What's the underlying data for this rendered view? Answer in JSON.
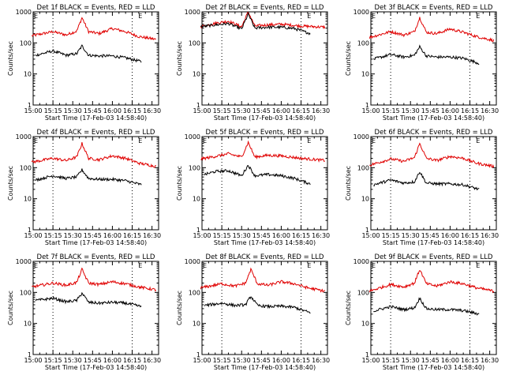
{
  "chart_data": [
    {
      "type": "line",
      "title": "Det 1f BLACK = Events, RED = LLD",
      "ylabel": "Counts/sec",
      "xlabel": "Start Time (17-Feb-03 14:58:40)",
      "x_ticks": [
        "15:00",
        "15:15",
        "15:30",
        "15:45",
        "16:00",
        "16:15",
        "16:30"
      ],
      "y_ticks": [
        "1",
        "10",
        "100",
        "1000"
      ],
      "ylim": [
        1,
        1000
      ],
      "y_scale": "log",
      "markers": [
        "E",
        "E"
      ],
      "series": [
        {
          "color": "#e00000",
          "x": [
            "14:59",
            "15:15",
            "15:25",
            "15:33",
            "15:37",
            "15:42",
            "15:50",
            "16:00",
            "16:10",
            "16:20",
            "16:33"
          ],
          "values": [
            170,
            230,
            180,
            240,
            650,
            230,
            200,
            290,
            230,
            160,
            130
          ]
        },
        {
          "color": "#000000",
          "x": [
            "15:02",
            "15:15",
            "15:25",
            "15:33",
            "15:37",
            "15:42",
            "15:50",
            "16:00",
            "16:10",
            "16:22"
          ],
          "values": [
            40,
            55,
            40,
            45,
            80,
            40,
            38,
            38,
            33,
            25
          ]
        }
      ]
    },
    {
      "type": "line",
      "title": "Det 2f BLACK = Events, RED = LLD",
      "ylabel": "Counts/sec",
      "xlabel": "Start Time (17-Feb-03 14:58:40)",
      "x_ticks": [
        "15:00",
        "15:15",
        "15:30",
        "15:45",
        "16:00",
        "16:15",
        "16:30"
      ],
      "y_ticks": [
        "1",
        "10",
        "100",
        "1000"
      ],
      "ylim": [
        1,
        1000
      ],
      "y_scale": "log",
      "markers": [
        "E",
        "E"
      ],
      "series": [
        {
          "color": "#e00000",
          "x": [
            "14:59",
            "15:10",
            "15:20",
            "15:30",
            "15:35",
            "15:40",
            "15:50",
            "16:00",
            "16:15",
            "16:33"
          ],
          "values": [
            330,
            430,
            500,
            330,
            1000,
            350,
            380,
            400,
            350,
            320
          ]
        },
        {
          "color": "#000000",
          "x": [
            "14:59",
            "15:10",
            "15:20",
            "15:30",
            "15:35",
            "15:40",
            "15:50",
            "16:00",
            "16:10",
            "16:22"
          ],
          "values": [
            330,
            380,
            420,
            280,
            850,
            300,
            320,
            320,
            290,
            200
          ]
        }
      ]
    },
    {
      "type": "line",
      "title": "Det 3f BLACK = Events, RED = LLD",
      "ylabel": "Counts/sec",
      "xlabel": "Start Time (17-Feb-03 14:58:40)",
      "x_ticks": [
        "15:00",
        "15:15",
        "15:30",
        "15:45",
        "16:00",
        "16:15",
        "16:30"
      ],
      "y_ticks": [
        "1",
        "10",
        "100",
        "1000"
      ],
      "ylim": [
        1,
        1000
      ],
      "y_scale": "log",
      "markers": [
        "E",
        "E"
      ],
      "series": [
        {
          "color": "#e00000",
          "x": [
            "14:59",
            "15:15",
            "15:25",
            "15:33",
            "15:37",
            "15:42",
            "15:50",
            "16:00",
            "16:10",
            "16:20",
            "16:33"
          ],
          "values": [
            150,
            230,
            180,
            230,
            650,
            220,
            200,
            280,
            220,
            160,
            120
          ]
        },
        {
          "color": "#000000",
          "x": [
            "15:02",
            "15:15",
            "15:25",
            "15:33",
            "15:37",
            "15:42",
            "15:50",
            "16:00",
            "16:10",
            "16:22"
          ],
          "values": [
            30,
            42,
            35,
            40,
            75,
            38,
            35,
            35,
            32,
            22
          ]
        }
      ]
    },
    {
      "type": "line",
      "title": "Det 4f BLACK = Events, RED = LLD",
      "ylabel": "Counts/sec",
      "xlabel": "Start Time (17-Feb-03 14:58:40)",
      "x_ticks": [
        "15:00",
        "15:15",
        "15:30",
        "15:45",
        "16:00",
        "16:15",
        "16:30"
      ],
      "y_ticks": [
        "1",
        "10",
        "100",
        "1000"
      ],
      "ylim": [
        1,
        1000
      ],
      "y_scale": "log",
      "markers": [
        "E",
        "E"
      ],
      "series": [
        {
          "color": "#e00000",
          "x": [
            "14:59",
            "15:15",
            "15:25",
            "15:33",
            "15:37",
            "15:42",
            "15:50",
            "16:00",
            "16:10",
            "16:20",
            "16:33"
          ],
          "values": [
            150,
            200,
            170,
            220,
            600,
            200,
            180,
            240,
            200,
            140,
            110
          ]
        },
        {
          "color": "#000000",
          "x": [
            "15:02",
            "15:15",
            "15:25",
            "15:33",
            "15:37",
            "15:42",
            "15:50",
            "16:00",
            "16:10",
            "16:22"
          ],
          "values": [
            40,
            55,
            45,
            50,
            85,
            45,
            42,
            42,
            38,
            28
          ]
        }
      ]
    },
    {
      "type": "line",
      "title": "Det 5f BLACK = Events, RED = LLD",
      "ylabel": "Counts/sec",
      "xlabel": "Start Time (17-Feb-03 14:58:40)",
      "x_ticks": [
        "15:00",
        "15:15",
        "15:30",
        "15:45",
        "16:00",
        "16:15",
        "16:30"
      ],
      "y_ticks": [
        "1",
        "10",
        "100",
        "1000"
      ],
      "ylim": [
        1,
        1000
      ],
      "y_scale": "log",
      "markers": [
        "E",
        "E"
      ],
      "series": [
        {
          "color": "#e00000",
          "x": [
            "14:59",
            "15:10",
            "15:20",
            "15:30",
            "15:35",
            "15:40",
            "15:50",
            "16:00",
            "16:15",
            "16:33"
          ],
          "values": [
            190,
            230,
            280,
            220,
            650,
            220,
            250,
            240,
            200,
            170
          ]
        },
        {
          "color": "#000000",
          "x": [
            "15:02",
            "15:10",
            "15:20",
            "15:30",
            "15:35",
            "15:40",
            "15:50",
            "16:00",
            "16:10",
            "16:22"
          ],
          "values": [
            60,
            75,
            80,
            55,
            120,
            55,
            60,
            55,
            45,
            30
          ]
        }
      ]
    },
    {
      "type": "line",
      "title": "Det 6f BLACK = Events, RED = LLD",
      "ylabel": "Counts/sec",
      "xlabel": "Start Time (17-Feb-03 14:58:40)",
      "x_ticks": [
        "15:00",
        "15:15",
        "15:30",
        "15:45",
        "16:00",
        "16:15",
        "16:30"
      ],
      "y_ticks": [
        "1",
        "10",
        "100",
        "1000"
      ],
      "ylim": [
        1,
        1000
      ],
      "y_scale": "log",
      "markers": [
        "E",
        "E"
      ],
      "series": [
        {
          "color": "#e00000",
          "x": [
            "14:59",
            "15:15",
            "15:25",
            "15:33",
            "15:37",
            "15:42",
            "15:50",
            "16:00",
            "16:10",
            "16:20",
            "16:33"
          ],
          "values": [
            120,
            190,
            160,
            210,
            600,
            200,
            170,
            230,
            200,
            140,
            110
          ]
        },
        {
          "color": "#000000",
          "x": [
            "15:02",
            "15:15",
            "15:25",
            "15:33",
            "15:37",
            "15:42",
            "15:50",
            "16:00",
            "16:10",
            "16:22"
          ],
          "values": [
            28,
            40,
            32,
            35,
            75,
            32,
            30,
            30,
            28,
            20
          ]
        }
      ]
    },
    {
      "type": "line",
      "title": "Det 7f BLACK = Events, RED = LLD",
      "ylabel": "Counts/sec",
      "xlabel": "Start Time (17-Feb-03 14:58:40)",
      "x_ticks": [
        "15:00",
        "15:15",
        "15:30",
        "15:45",
        "16:00",
        "16:15",
        "16:30"
      ],
      "y_ticks": [
        "1",
        "10",
        "100",
        "1000"
      ],
      "ylim": [
        1,
        1000
      ],
      "y_scale": "log",
      "markers": [
        "E",
        "E"
      ],
      "series": [
        {
          "color": "#e00000",
          "x": [
            "14:59",
            "15:15",
            "15:25",
            "15:33",
            "15:37",
            "15:42",
            "15:50",
            "16:00",
            "16:10",
            "16:20",
            "16:33"
          ],
          "values": [
            150,
            200,
            170,
            210,
            550,
            200,
            180,
            220,
            190,
            150,
            120
          ]
        },
        {
          "color": "#000000",
          "x": [
            "15:02",
            "15:15",
            "15:25",
            "15:33",
            "15:37",
            "15:42",
            "15:50",
            "16:00",
            "16:10",
            "16:22"
          ],
          "values": [
            55,
            65,
            50,
            55,
            95,
            48,
            45,
            48,
            45,
            35
          ]
        }
      ]
    },
    {
      "type": "line",
      "title": "Det 8f BLACK = Events, RED = LLD",
      "ylabel": "Counts/sec",
      "xlabel": "Start Time (17-Feb-03 14:58:40)",
      "x_ticks": [
        "15:00",
        "15:15",
        "15:30",
        "15:45",
        "16:00",
        "16:15",
        "16:30"
      ],
      "y_ticks": [
        "1",
        "10",
        "100",
        "1000"
      ],
      "ylim": [
        1,
        1000
      ],
      "y_scale": "log",
      "markers": [
        "E",
        "E"
      ],
      "series": [
        {
          "color": "#e00000",
          "x": [
            "14:59",
            "15:15",
            "15:25",
            "15:33",
            "15:37",
            "15:42",
            "15:50",
            "16:00",
            "16:10",
            "16:20",
            "16:33"
          ],
          "values": [
            140,
            190,
            160,
            200,
            550,
            190,
            170,
            220,
            190,
            140,
            110
          ]
        },
        {
          "color": "#000000",
          "x": [
            "15:02",
            "15:15",
            "15:25",
            "15:33",
            "15:37",
            "15:42",
            "15:50",
            "16:00",
            "16:10",
            "16:22"
          ],
          "values": [
            38,
            45,
            38,
            40,
            75,
            38,
            35,
            36,
            33,
            22
          ]
        }
      ]
    },
    {
      "type": "line",
      "title": "Det 9f BLACK = Events, RED = LLD",
      "ylabel": "Counts/sec",
      "xlabel": "Start Time (17-Feb-03 14:58:40)",
      "x_ticks": [
        "15:00",
        "15:15",
        "15:30",
        "15:45",
        "16:00",
        "16:15",
        "16:30"
      ],
      "y_ticks": [
        "1",
        "10",
        "100",
        "1000"
      ],
      "ylim": [
        1,
        1000
      ],
      "y_scale": "log",
      "markers": [
        "E",
        "E"
      ],
      "series": [
        {
          "color": "#e00000",
          "x": [
            "14:59",
            "15:15",
            "15:25",
            "15:33",
            "15:37",
            "15:42",
            "15:50",
            "16:00",
            "16:10",
            "16:20",
            "16:33"
          ],
          "values": [
            110,
            180,
            150,
            200,
            550,
            190,
            160,
            220,
            190,
            140,
            110
          ]
        },
        {
          "color": "#000000",
          "x": [
            "15:02",
            "15:15",
            "15:25",
            "15:33",
            "15:37",
            "15:42",
            "15:50",
            "16:00",
            "16:10",
            "16:22"
          ],
          "values": [
            25,
            35,
            28,
            32,
            65,
            30,
            28,
            28,
            26,
            20
          ]
        }
      ]
    }
  ]
}
